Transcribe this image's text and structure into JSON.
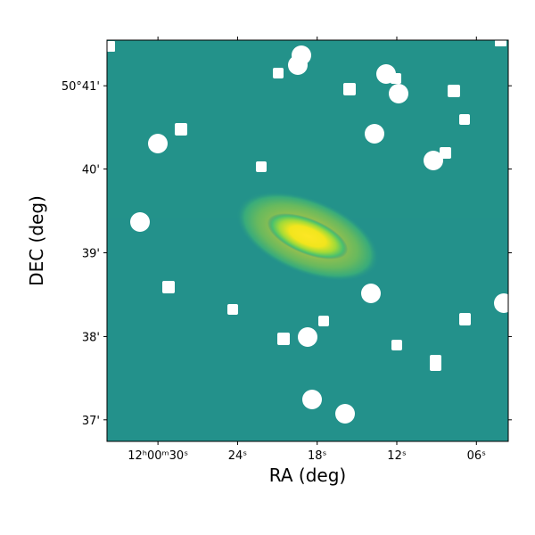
{
  "chart_data": {
    "type": "image",
    "xlabel": "RA (deg)",
    "ylabel": "DEC (deg)",
    "xlim": [
      180.141,
      180.015
    ],
    "ylim": [
      50.6124,
      50.6924
    ],
    "xticks": [
      {
        "value": 180.125,
        "label": "12ʰ00ᵐ30ˢ"
      },
      {
        "value": 180.1,
        "label": "24ˢ"
      },
      {
        "value": 180.075,
        "label": "18ˢ"
      },
      {
        "value": 180.05,
        "label": "12ˢ"
      },
      {
        "value": 180.025,
        "label": "06ˢ"
      }
    ],
    "yticks": [
      {
        "value": 50.6833,
        "label": "50°41'"
      },
      {
        "value": 50.6667,
        "label": "40'"
      },
      {
        "value": 50.65,
        "label": "39'"
      },
      {
        "value": 50.6333,
        "label": "38'"
      },
      {
        "value": 50.6167,
        "label": "37'"
      }
    ]
  }
}
